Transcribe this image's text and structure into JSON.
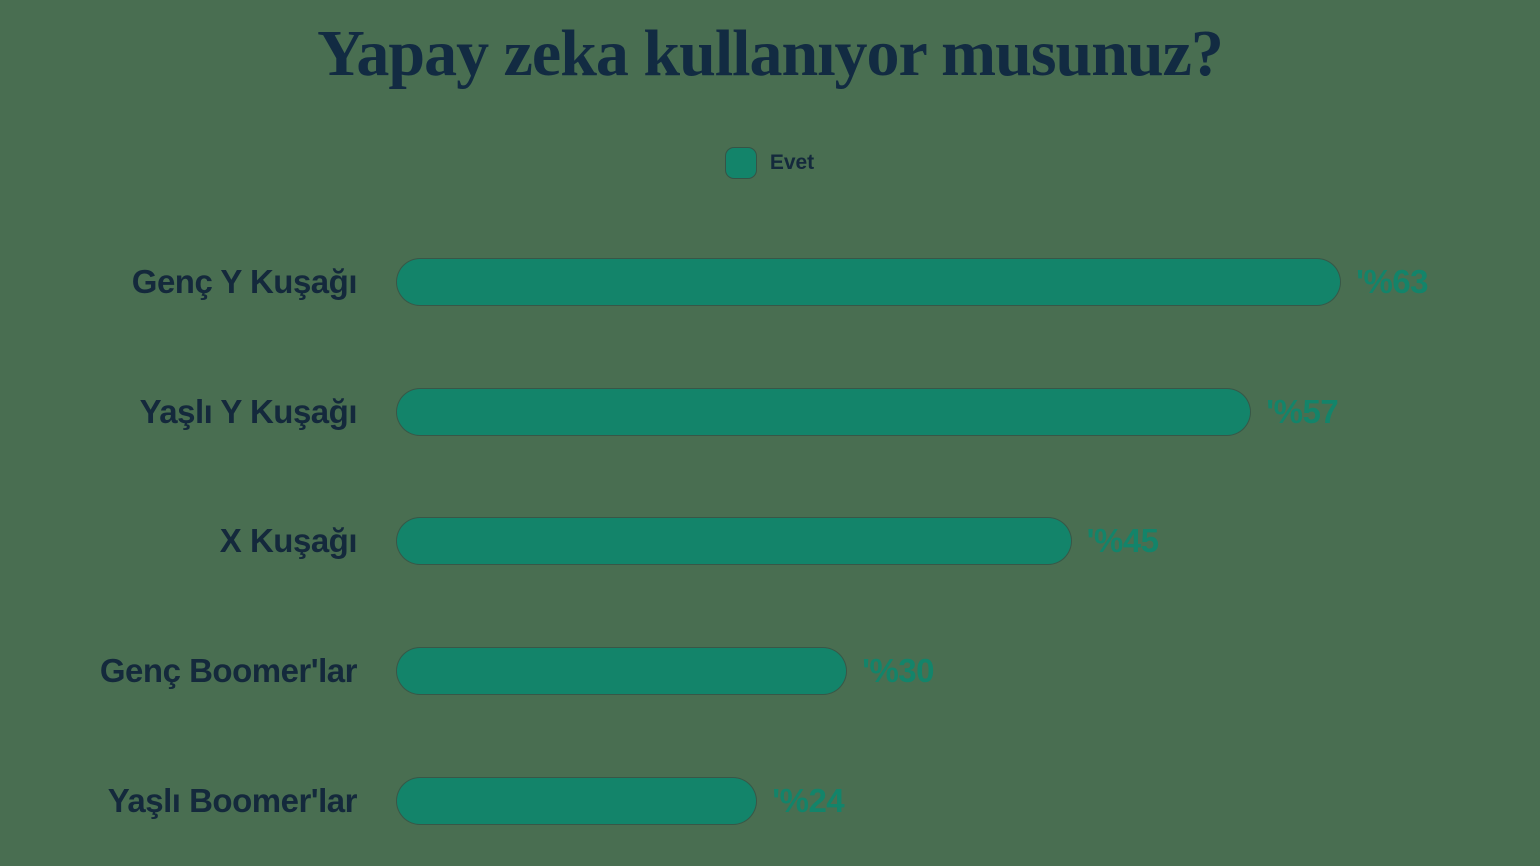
{
  "title": "Yapay zeka kullanıyor musunuz?",
  "legend": {
    "label": "Evet"
  },
  "colors": {
    "background": "#496E51",
    "bar": "#13846A",
    "value_label": "#13846A",
    "category_label": "#14293C",
    "title": "#122B42"
  },
  "chart_data": {
    "type": "bar",
    "orientation": "horizontal",
    "title": "Yapay zeka kullanıyor musunuz?",
    "legend_entries": [
      "Evet"
    ],
    "legend_position": "top-center",
    "categories": [
      "Genç Y Kuşağı",
      "Yaşlı Y Kuşağı",
      "X Kuşağı",
      "Genç Boomer'lar",
      "Yaşlı Boomer'lar"
    ],
    "series": [
      {
        "name": "Evet",
        "values": [
          63,
          57,
          45,
          30,
          24
        ]
      }
    ],
    "value_labels": [
      "'%63",
      "'%57",
      "'%45",
      "'%30",
      "'%24"
    ],
    "unit": "percent",
    "xlim": [
      0,
      76
    ],
    "grid": false,
    "axes_visible": false
  }
}
